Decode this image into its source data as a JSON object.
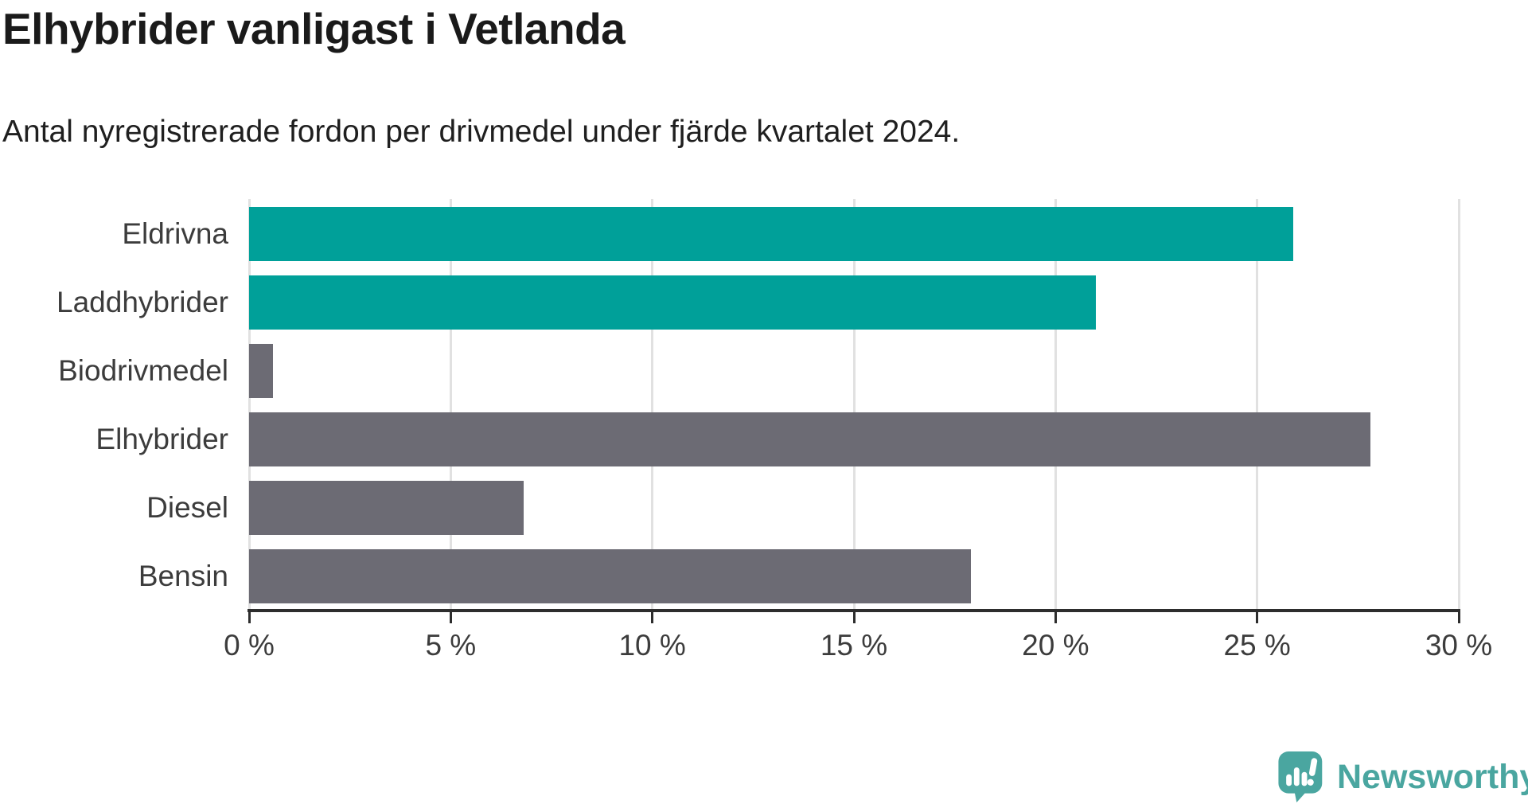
{
  "header": {
    "title": "Elhybrider vanligast i Vetlanda",
    "subtitle": "Antal nyregistrerade fordon per drivmedel under fjärde kvartalet 2024."
  },
  "chart_data": {
    "type": "bar",
    "orientation": "horizontal",
    "title": "Elhybrider vanligast i Vetlanda",
    "subtitle": "Antal nyregistrerade fordon per drivmedel under fjärde kvartalet 2024.",
    "categories": [
      "Eldrivna",
      "Laddhybrider",
      "Biodrivmedel",
      "Elhybrider",
      "Diesel",
      "Bensin"
    ],
    "values": [
      25.9,
      21.0,
      0.6,
      27.8,
      6.8,
      17.9
    ],
    "unit": "%",
    "bar_colors": [
      "#00a099",
      "#00a099",
      "#6c6b74",
      "#6c6b74",
      "#6c6b74",
      "#6c6b74"
    ],
    "xlim": [
      0,
      30
    ],
    "x_ticks": [
      0,
      5,
      10,
      15,
      20,
      25,
      30
    ],
    "x_tick_labels": [
      "0 %",
      "5 %",
      "10 %",
      "15 %",
      "20 %",
      "25 %",
      "30 %"
    ],
    "grid": "vertical-gridlines-on",
    "legend": "none"
  },
  "colors": {
    "accent_teal": "#00a099",
    "neutral_gray": "#6c6b74",
    "gridline": "#e1e1e1",
    "axis": "#2d2d2d",
    "title_text": "#1a1a1a",
    "label_text": "#3c3c3c",
    "logo_teal": "#4aa6a0"
  },
  "branding": {
    "logo_text": "Newsworthy",
    "logo_icon": "newsworthy-pin-barchart-icon"
  }
}
